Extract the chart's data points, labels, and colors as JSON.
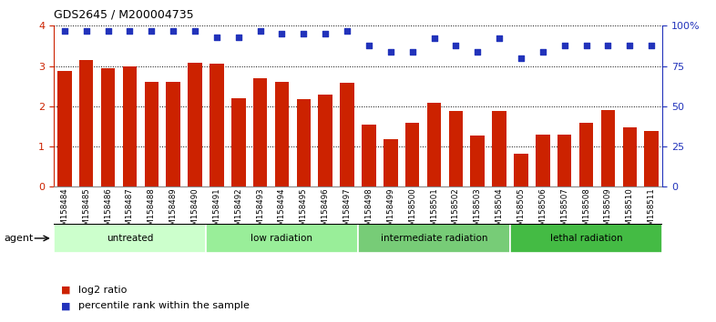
{
  "title": "GDS2645 / M200004735",
  "samples": [
    "GSM158484",
    "GSM158485",
    "GSM158486",
    "GSM158487",
    "GSM158488",
    "GSM158489",
    "GSM158490",
    "GSM158491",
    "GSM158492",
    "GSM158493",
    "GSM158494",
    "GSM158495",
    "GSM158496",
    "GSM158497",
    "GSM158498",
    "GSM158499",
    "GSM158500",
    "GSM158501",
    "GSM158502",
    "GSM158503",
    "GSM158504",
    "GSM158505",
    "GSM158506",
    "GSM158507",
    "GSM158508",
    "GSM158509",
    "GSM158510",
    "GSM158511"
  ],
  "log2_ratio": [
    2.88,
    3.15,
    2.95,
    3.0,
    2.6,
    2.6,
    3.08,
    3.05,
    2.2,
    2.7,
    2.6,
    2.18,
    2.28,
    2.58,
    1.55,
    1.18,
    1.6,
    2.08,
    1.88,
    1.28,
    1.88,
    0.82,
    1.3,
    1.3,
    1.58,
    1.9,
    1.48,
    1.38
  ],
  "percentile": [
    97,
    97,
    97,
    97,
    97,
    97,
    97,
    93,
    93,
    97,
    95,
    95,
    95,
    97,
    88,
    84,
    84,
    92,
    88,
    84,
    92,
    80,
    84,
    88,
    88,
    88,
    88,
    88
  ],
  "groups": [
    {
      "label": "untreated",
      "start": 0,
      "end": 7,
      "color": "#ccffcc"
    },
    {
      "label": "low radiation",
      "start": 7,
      "end": 14,
      "color": "#99ee99"
    },
    {
      "label": "intermediate radiation",
      "start": 14,
      "end": 21,
      "color": "#77cc77"
    },
    {
      "label": "lethal radiation",
      "start": 21,
      "end": 28,
      "color": "#44bb44"
    }
  ],
  "bar_color": "#cc2200",
  "dot_color": "#2233bb",
  "ylim_left": [
    0,
    4
  ],
  "ylim_right": [
    0,
    100
  ],
  "yticks_left": [
    0,
    1,
    2,
    3,
    4
  ],
  "yticks_right": [
    0,
    25,
    50,
    75,
    100
  ],
  "ytick_labels_right": [
    "0",
    "25",
    "50",
    "75",
    "100%"
  ],
  "legend_items": [
    {
      "color": "#cc2200",
      "label": "log2 ratio"
    },
    {
      "color": "#2233bb",
      "label": "percentile rank within the sample"
    }
  ],
  "agent_label": "agent"
}
